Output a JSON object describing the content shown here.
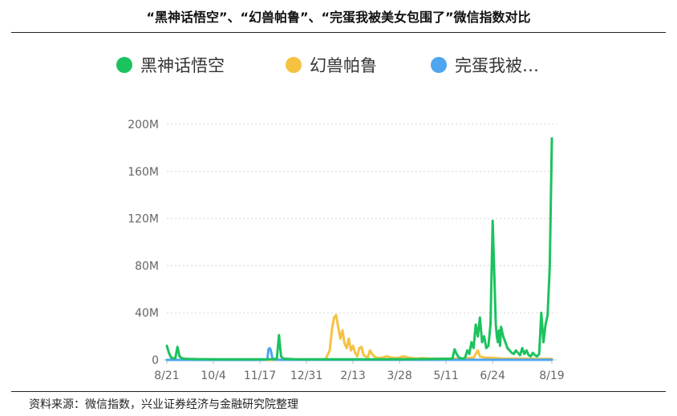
{
  "title": "“黑神话悟空”、“幻兽帕鲁”、“完蛋我被美女包围了”微信指数对比",
  "source": "资料来源：微信指数，兴业证券经济与金融研究院整理",
  "chart_data": {
    "type": "line",
    "title": "",
    "xlabel": "",
    "ylabel": "",
    "ylim": [
      0,
      200000000
    ],
    "yticks": [
      0,
      40000000,
      80000000,
      120000000,
      160000000,
      200000000
    ],
    "ytick_labels": [
      "0",
      "40M",
      "80M",
      "120M",
      "160M",
      "200M"
    ],
    "xlim": [
      0,
      364
    ],
    "xticks": [
      0,
      44,
      88,
      132,
      176,
      220,
      264,
      308,
      364
    ],
    "xtick_labels": [
      "8/21",
      "10/4",
      "11/17",
      "12/31",
      "2/13",
      "3/28",
      "5/11",
      "6/24",
      "8/19"
    ],
    "grid": "horizontal dotted",
    "legend": "top",
    "series": [
      {
        "name": "黑神话悟空",
        "color": "#1cc25e",
        "x": [
          0,
          2,
          4,
          6,
          8,
          10,
          12,
          14,
          16,
          20,
          30,
          50,
          70,
          90,
          100,
          104,
          106,
          108,
          110,
          120,
          130,
          150,
          170,
          190,
          210,
          240,
          270,
          272,
          274,
          276,
          278,
          280,
          282,
          284,
          286,
          288,
          290,
          292,
          294,
          296,
          298,
          300,
          302,
          304,
          306,
          308,
          310,
          311,
          312,
          313,
          314,
          315,
          316,
          318,
          320,
          322,
          324,
          326,
          328,
          330,
          332,
          334,
          336,
          338,
          340,
          342,
          344,
          346,
          348,
          350,
          352,
          354,
          356,
          358,
          360,
          362,
          364
        ],
        "values": [
          12000000,
          6000000,
          2000000,
          1500000,
          1200000,
          11000000,
          3000000,
          1500000,
          1000000,
          800000,
          600000,
          500000,
          500000,
          500000,
          600000,
          1000000,
          21000000,
          3000000,
          1000000,
          600000,
          500000,
          500000,
          500000,
          500000,
          500000,
          700000,
          1000000,
          9000000,
          5000000,
          2000000,
          1500000,
          1000000,
          2000000,
          8000000,
          5000000,
          15000000,
          10000000,
          30000000,
          20000000,
          36000000,
          15000000,
          20000000,
          10000000,
          12000000,
          30000000,
          118000000,
          60000000,
          30000000,
          20000000,
          15000000,
          25000000,
          12000000,
          28000000,
          20000000,
          15000000,
          10000000,
          8000000,
          6000000,
          5000000,
          8000000,
          6000000,
          4000000,
          10000000,
          5000000,
          8000000,
          4000000,
          3000000,
          6000000,
          4000000,
          3000000,
          5000000,
          40000000,
          15000000,
          30000000,
          38000000,
          80000000,
          188000000
        ]
      },
      {
        "name": "幻兽帕鲁",
        "color": "#f5c242",
        "x": [
          0,
          100,
          150,
          154,
          156,
          158,
          160,
          162,
          164,
          166,
          168,
          170,
          172,
          174,
          176,
          178,
          180,
          182,
          184,
          186,
          188,
          190,
          192,
          194,
          196,
          198,
          200,
          204,
          208,
          212,
          216,
          220,
          224,
          228,
          232,
          236,
          240,
          250,
          260,
          280,
          290,
          294,
          296,
          300,
          310,
          320,
          330,
          340,
          350,
          364
        ],
        "values": [
          0,
          0,
          500000,
          8000000,
          25000000,
          36000000,
          38000000,
          28000000,
          18000000,
          25000000,
          14000000,
          10000000,
          18000000,
          8000000,
          12000000,
          6000000,
          3000000,
          10000000,
          11000000,
          4000000,
          3000000,
          2000000,
          8000000,
          5000000,
          3000000,
          2000000,
          1500000,
          2000000,
          3000000,
          2000000,
          1500000,
          2000000,
          3000000,
          2000000,
          1500000,
          1000000,
          1500000,
          1000000,
          1000000,
          1000000,
          2000000,
          8000000,
          3000000,
          2000000,
          1500000,
          1000000,
          1000000,
          1000000,
          800000,
          800000
        ]
      },
      {
        "name": "完蛋我被…",
        "color": "#4ea5f0",
        "x": [
          0,
          90,
          95,
          96,
          97,
          98,
          99,
          100,
          102,
          110,
          150,
          200,
          250,
          300,
          364
        ],
        "values": [
          0,
          0,
          300000,
          9000000,
          10000000,
          9000000,
          5000000,
          500000,
          200000,
          100000,
          100000,
          100000,
          100000,
          100000,
          100000
        ]
      }
    ]
  }
}
